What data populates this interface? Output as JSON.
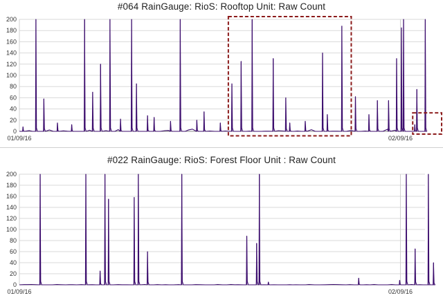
{
  "chart_data": [
    {
      "type": "line",
      "title": "#064 RainGauge: RioS: Rooftop Unit: Raw Count",
      "xlabel": "",
      "ylabel": "",
      "ylim": [
        0,
        200
      ],
      "yticks": [
        0,
        20,
        40,
        60,
        80,
        100,
        120,
        140,
        160,
        180,
        200
      ],
      "xlim": [
        "2016-01-09",
        "2016-02-11"
      ],
      "x_tick_labels": [
        {
          "date": "2016-01-09",
          "label": "01/09/16"
        },
        {
          "date": "2016-02-09",
          "label": "02/09/16"
        }
      ],
      "grid": true,
      "highlight_boxes": [
        {
          "x": [
            "2016-01-26",
            "2016-02-05"
          ],
          "y": [
            -8,
            205
          ]
        },
        {
          "x": [
            "2016-02-10",
            "2016-02-16"
          ],
          "y": [
            -5,
            33
          ]
        }
      ],
      "series": [
        {
          "color": "#3d0e6e",
          "spikes": [
            {
              "x": "2016-01-09",
              "y": 8
            },
            {
              "x": "2016-01-10",
              "y": 200
            },
            {
              "x": "2016-01-11",
              "y": 58
            },
            {
              "x": "2016-01-12",
              "y": 15
            },
            {
              "x": "2016-01-13",
              "y": 12
            },
            {
              "x": "2016-01-14",
              "y": 200
            },
            {
              "x": "2016-01-15",
              "y": 70
            },
            {
              "x": "2016-01-15",
              "y": 120
            },
            {
              "x": "2016-01-16",
              "y": 200
            },
            {
              "x": "2016-01-17",
              "y": 22
            },
            {
              "x": "2016-01-18",
              "y": 200
            },
            {
              "x": "2016-01-18",
              "y": 85
            },
            {
              "x": "2016-01-19",
              "y": 28
            },
            {
              "x": "2016-01-20",
              "y": 25
            },
            {
              "x": "2016-01-21",
              "y": 18
            },
            {
              "x": "2016-01-22",
              "y": 200
            },
            {
              "x": "2016-01-23",
              "y": 20
            },
            {
              "x": "2016-01-24",
              "y": 35
            },
            {
              "x": "2016-01-25",
              "y": 15
            },
            {
              "x": "2016-01-26",
              "y": 85
            },
            {
              "x": "2016-01-27",
              "y": 125
            },
            {
              "x": "2016-01-28",
              "y": 200
            },
            {
              "x": "2016-01-29",
              "y": 130
            },
            {
              "x": "2016-01-30",
              "y": 60
            },
            {
              "x": "2016-01-31",
              "y": 15
            },
            {
              "x": "2016-02-01",
              "y": 18
            },
            {
              "x": "2016-02-02",
              "y": 140
            },
            {
              "x": "2016-02-03",
              "y": 30
            },
            {
              "x": "2016-02-04",
              "y": 188
            },
            {
              "x": "2016-02-05",
              "y": 62
            },
            {
              "x": "2016-02-06",
              "y": 30
            },
            {
              "x": "2016-02-07",
              "y": 55
            },
            {
              "x": "2016-02-08",
              "y": 55
            },
            {
              "x": "2016-02-08",
              "y": 130
            },
            {
              "x": "2016-02-09",
              "y": 200
            },
            {
              "x": "2016-02-09",
              "y": 185
            },
            {
              "x": "2016-02-10",
              "y": 75
            },
            {
              "x": "2016-02-10",
              "y": 12
            },
            {
              "x": "2016-02-11",
              "y": 200
            }
          ]
        }
      ]
    },
    {
      "type": "line",
      "title": "#022 RainGauge: RioS: Forest Floor Unit : Raw Count",
      "xlabel": "",
      "ylabel": "",
      "ylim": [
        0,
        200
      ],
      "yticks": [
        0,
        20,
        40,
        60,
        80,
        100,
        120,
        140,
        160,
        180,
        200
      ],
      "xlim": [
        "2016-01-09",
        "2016-02-11"
      ],
      "x_tick_labels": [
        {
          "date": "2016-01-09",
          "label": "01/09/16"
        },
        {
          "date": "2016-02-09",
          "label": "02/09/16"
        }
      ],
      "grid": true,
      "series": [
        {
          "color": "#3d0e6e",
          "spikes": [
            {
              "x": "2016-01-10",
              "y": 200
            },
            {
              "x": "2016-01-14",
              "y": 200
            },
            {
              "x": "2016-01-15",
              "y": 25
            },
            {
              "x": "2016-01-16",
              "y": 155
            },
            {
              "x": "2016-01-16",
              "y": 200
            },
            {
              "x": "2016-01-18",
              "y": 200
            },
            {
              "x": "2016-01-18",
              "y": 158
            },
            {
              "x": "2016-01-19",
              "y": 60
            },
            {
              "x": "2016-01-22",
              "y": 200
            },
            {
              "x": "2016-01-27",
              "y": 88
            },
            {
              "x": "2016-01-28",
              "y": 200
            },
            {
              "x": "2016-01-28",
              "y": 75
            },
            {
              "x": "2016-01-29",
              "y": 5
            },
            {
              "x": "2016-02-05",
              "y": 12
            },
            {
              "x": "2016-02-09",
              "y": 200
            },
            {
              "x": "2016-02-09",
              "y": 8
            },
            {
              "x": "2016-02-10",
              "y": 65
            },
            {
              "x": "2016-02-11",
              "y": 200
            },
            {
              "x": "2016-02-11",
              "y": 40
            }
          ]
        }
      ]
    }
  ]
}
